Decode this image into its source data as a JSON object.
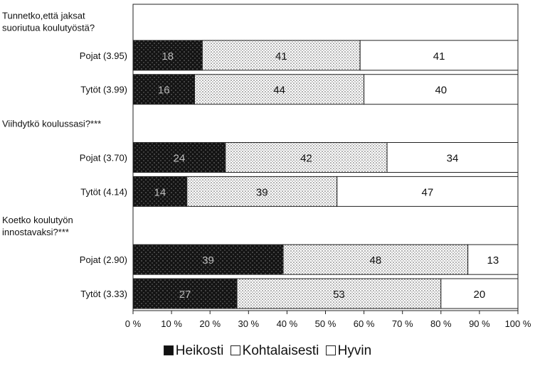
{
  "chart_data": {
    "type": "bar",
    "stacked": true,
    "orientation": "horizontal",
    "percent": true,
    "groups": [
      {
        "title": "Tunnetko,että jaksat suoriutua koulutyöstä?",
        "rows": [
          {
            "label": "Pojat (3.95)",
            "values": [
              18,
              41,
              41
            ]
          },
          {
            "label": "Tytöt (3.99)",
            "values": [
              16,
              44,
              40
            ]
          }
        ]
      },
      {
        "title": "Viihdytkö koulussasi?***",
        "rows": [
          {
            "label": "Pojat (3.70)",
            "values": [
              24,
              42,
              34
            ]
          },
          {
            "label": "Tytöt (4.14)",
            "values": [
              14,
              39,
              47
            ]
          }
        ]
      },
      {
        "title": "Koetko koulutyön innostavaksi?***",
        "rows": [
          {
            "label": "Pojat (2.90)",
            "values": [
              39,
              48,
              13
            ]
          },
          {
            "label": "Tytöt (3.33)",
            "values": [
              27,
              53,
              20
            ]
          }
        ]
      }
    ],
    "series": [
      {
        "name": "Heikosti",
        "color": "#111111"
      },
      {
        "name": "Kohtalaisesti",
        "color": "#c8c8c8"
      },
      {
        "name": "Hyvin",
        "color": "#ffffff"
      }
    ],
    "xlim": [
      0,
      100
    ],
    "xticks": [
      "0 %",
      "10 %",
      "20 %",
      "30 %",
      "40 %",
      "50 %",
      "60 %",
      "70 %",
      "80 %",
      "90 %",
      "100 %"
    ],
    "legend_position": "bottom"
  }
}
